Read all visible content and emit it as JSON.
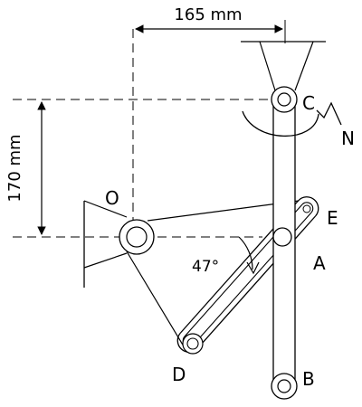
{
  "dimensions": {
    "horizontal": "165 mm",
    "vertical": "170 mm"
  },
  "angle": "47°",
  "points": {
    "O": "O",
    "C": "C",
    "N": "N",
    "E": "E",
    "A": "A",
    "D": "D",
    "B": "B"
  },
  "colors": {
    "ink": "#000000",
    "background": "#ffffff"
  }
}
